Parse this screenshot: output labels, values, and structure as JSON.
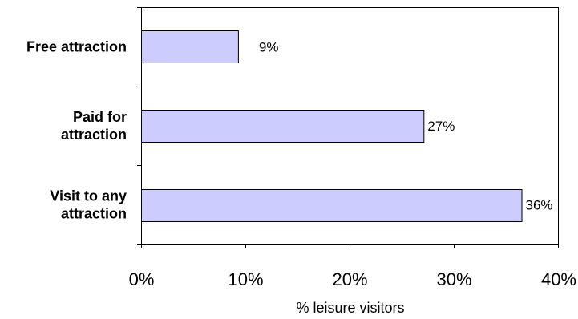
{
  "chart_data": {
    "type": "bar",
    "orientation": "horizontal",
    "categories": [
      [
        "Free attraction"
      ],
      [
        "Paid for",
        "attraction"
      ],
      [
        "Visit to any",
        "attraction"
      ]
    ],
    "values": [
      9.3,
      27.1,
      36.5
    ],
    "data_labels": [
      "9%",
      "27%",
      "36%"
    ],
    "xlabel": "%  leisure visitors",
    "xlim": [
      0,
      40
    ],
    "x_ticks": [
      0,
      10,
      20,
      30,
      40
    ],
    "x_tick_labels": [
      "0%",
      "10%",
      "20%",
      "30%",
      "40%"
    ],
    "grid": false,
    "legend": "none",
    "colors": {
      "bar_fill": "#ccccff",
      "bar_stroke": "#000000",
      "axis": "#000000"
    }
  }
}
